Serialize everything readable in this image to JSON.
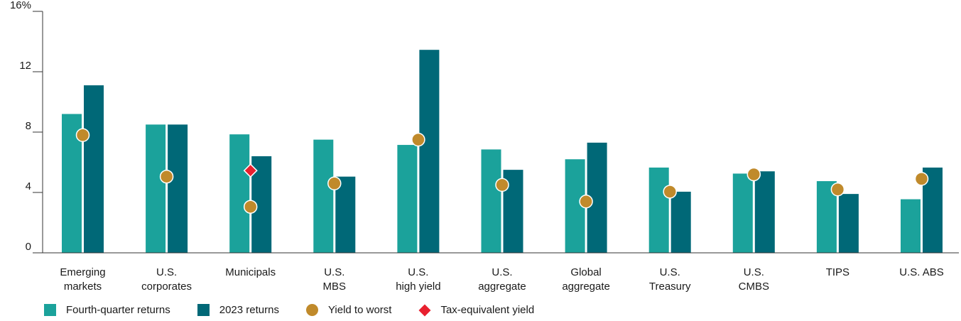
{
  "chart_data": {
    "type": "bar",
    "categories": [
      [
        "Emerging",
        "markets"
      ],
      [
        "U.S.",
        "corporates"
      ],
      [
        "Municipals"
      ],
      [
        "U.S.",
        "MBS"
      ],
      [
        "U.S.",
        "high yield"
      ],
      [
        "U.S.",
        "aggregate"
      ],
      [
        "Global",
        "aggregate"
      ],
      [
        "U.S.",
        "Treasury"
      ],
      [
        "U.S.",
        "CMBS"
      ],
      [
        "TIPS"
      ],
      [
        "U.S. ABS"
      ]
    ],
    "series": [
      {
        "name": "Fourth-quarter returns",
        "type": "bar",
        "color": "#1ba29b",
        "values": [
          9.2,
          8.5,
          7.85,
          7.5,
          7.15,
          6.85,
          6.2,
          5.65,
          5.25,
          4.75,
          3.55
        ]
      },
      {
        "name": "2023 returns",
        "type": "bar",
        "color": "#006877",
        "values": [
          11.1,
          8.5,
          6.4,
          5.05,
          13.45,
          5.5,
          7.3,
          4.05,
          5.4,
          3.9,
          5.65
        ]
      },
      {
        "name": "Yield to worst",
        "type": "marker",
        "marker": "circle",
        "color": "#c08a2b",
        "values": [
          7.8,
          5.05,
          3.05,
          4.6,
          7.5,
          4.5,
          3.4,
          4.05,
          5.2,
          4.2,
          4.9
        ]
      },
      {
        "name": "Tax-equivalent yield",
        "type": "marker",
        "marker": "diamond",
        "color": "#e8202f",
        "values": [
          null,
          null,
          5.45,
          null,
          null,
          null,
          null,
          null,
          null,
          null,
          null
        ]
      }
    ],
    "y_ticks": [
      "0",
      "4",
      "8",
      "12",
      "16%"
    ],
    "y_tick_values": [
      0,
      4,
      8,
      12,
      16
    ],
    "ylim": [
      0,
      16
    ],
    "grid": false,
    "legend_position": "bottom-left"
  }
}
